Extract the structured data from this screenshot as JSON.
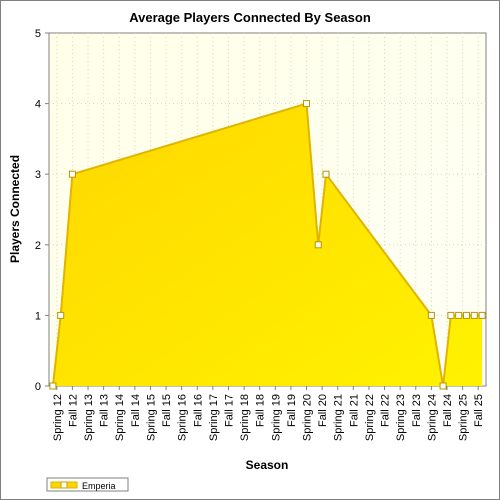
{
  "chart_data": {
    "type": "area",
    "title": "Average Players Connected By Season",
    "xlabel": "Season",
    "ylabel": "Players Connected",
    "ylim": [
      0,
      5
    ],
    "yticks": [
      "0",
      "1",
      "2",
      "3",
      "4",
      "5"
    ],
    "grid": true,
    "legend": "bottom-left",
    "categories": [
      "Spring 12",
      "Fall 12",
      "Spring 13",
      "Fall 13",
      "Spring 14",
      "Fall 14",
      "Spring 15",
      "Fall 15",
      "Spring 16",
      "Fall 16",
      "Spring 17",
      "Fall 17",
      "Spring 18",
      "Fall 18",
      "Spring 19",
      "Fall 19",
      "Spring 20",
      "Fall 20",
      "Spring 21",
      "Fall 21",
      "Spring 22",
      "Fall 22",
      "Spring 23",
      "Fall 23",
      "Spring 24",
      "Fall 24",
      "Spring 25",
      "Fall 25"
    ],
    "series": [
      {
        "name": "Emperia",
        "color": "#ffd700",
        "points": [
          {
            "x": "Spring 12",
            "y": 0
          },
          {
            "x": "Spring 12",
            "y": 1
          },
          {
            "x": "Fall 12",
            "y": 3
          },
          {
            "x": "Spring 20",
            "y": 4
          },
          {
            "x": "Fall 20",
            "y": 2
          },
          {
            "x": "Fall 20",
            "y": 3
          },
          {
            "x": "Spring 24",
            "y": 1
          },
          {
            "x": "Fall 24",
            "y": 0
          },
          {
            "x": "Fall 24",
            "y": 1
          },
          {
            "x": "Spring 25",
            "y": 1
          },
          {
            "x": "Spring 25",
            "y": 1
          },
          {
            "x": "Fall 25",
            "y": 1
          },
          {
            "x": "Fall 25",
            "y": 1
          }
        ]
      }
    ]
  }
}
